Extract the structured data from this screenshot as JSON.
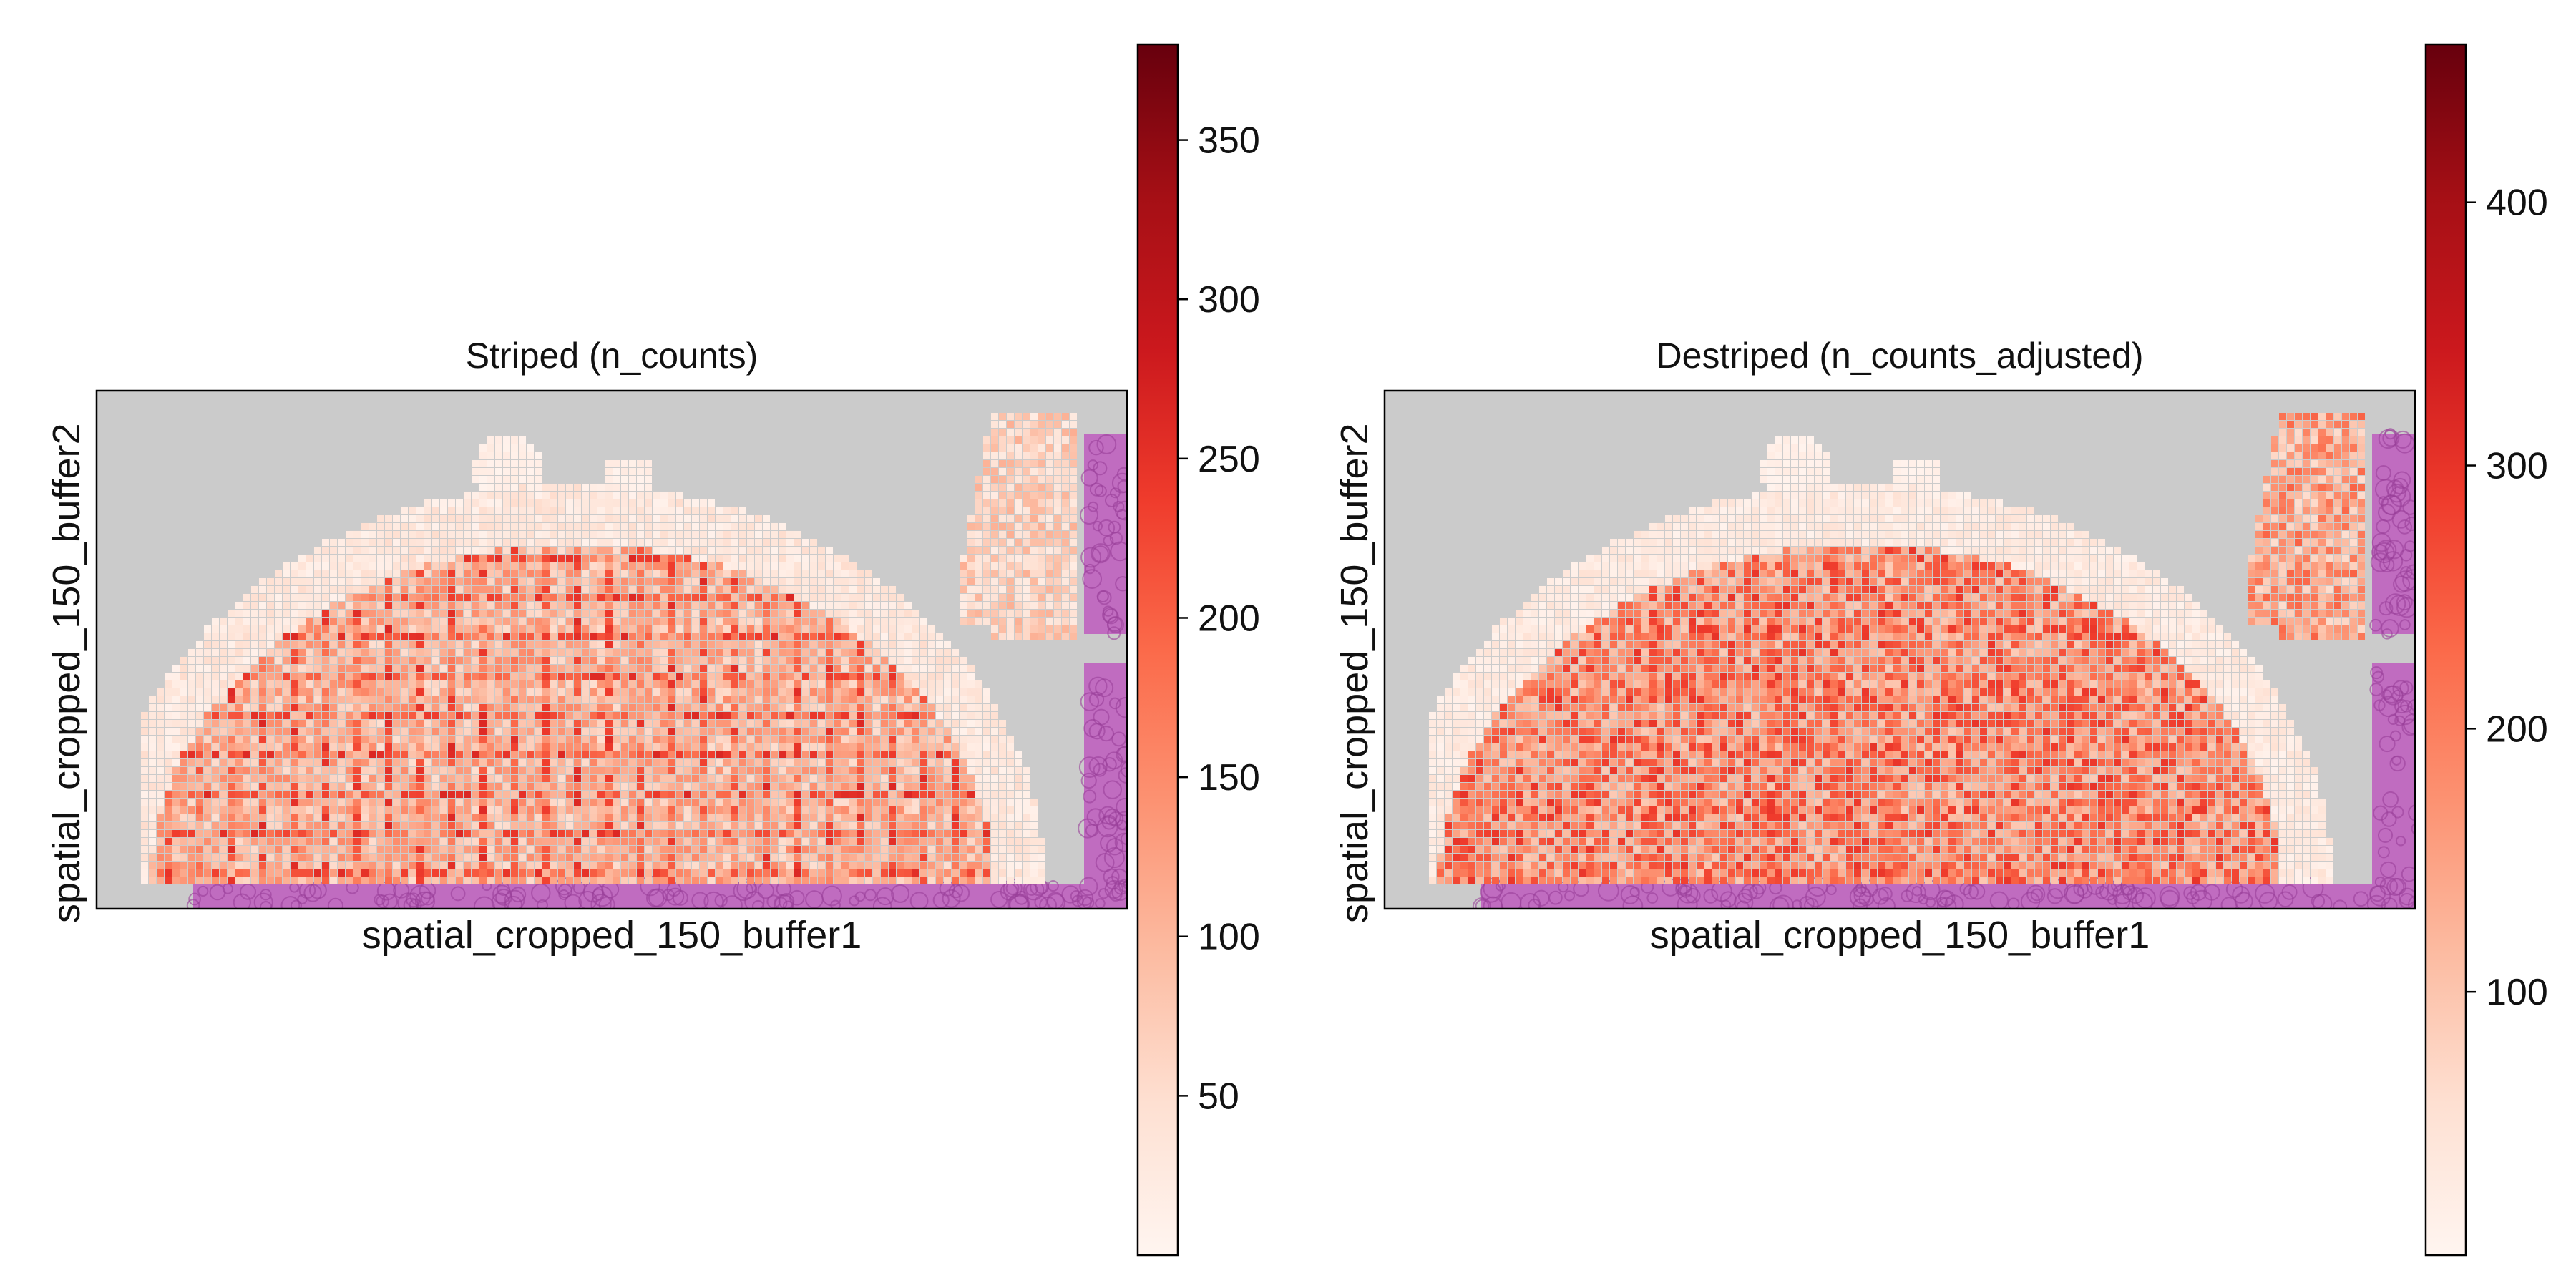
{
  "panels": [
    {
      "title": "Striped (n_counts)",
      "xlabel": "spatial_cropped_150_buffer1",
      "ylabel": "spatial_cropped_150_buffer2",
      "colorbar": {
        "cmap": "Reds",
        "ticks": [
          50,
          100,
          150,
          200,
          250,
          300,
          350
        ],
        "vmin": 0,
        "vmax": 380
      }
    },
    {
      "title": "Destriped (n_counts_adjusted)",
      "xlabel": "spatial_cropped_150_buffer1",
      "ylabel": "spatial_cropped_150_buffer2",
      "colorbar": {
        "cmap": "Reds",
        "ticks": [
          100,
          200,
          300,
          400
        ],
        "vmin": 0,
        "vmax": 460
      }
    }
  ],
  "chart_data": [
    {
      "type": "heatmap",
      "title": "Striped (n_counts)",
      "xlabel": "spatial_cropped_150_buffer1",
      "ylabel": "spatial_cropped_150_buffer2",
      "colorscale": "Reds",
      "color_range": [
        0,
        380
      ],
      "colorbar_ticks": [
        50,
        100,
        150,
        200,
        250,
        300,
        350
      ],
      "typical_tissue_value": 120,
      "background": "histology image (H&E)",
      "grid": false,
      "legend": "colorbar-right"
    },
    {
      "type": "heatmap",
      "title": "Destriped (n_counts_adjusted)",
      "xlabel": "spatial_cropped_150_buffer1",
      "ylabel": "spatial_cropped_150_buffer2",
      "colorscale": "Reds",
      "color_range": [
        0,
        460
      ],
      "colorbar_ticks": [
        100,
        200,
        300,
        400
      ],
      "typical_tissue_value": 200,
      "background": "histology image (H&E)",
      "grid": false,
      "legend": "colorbar-right"
    }
  ],
  "colors": {
    "background_gray": "#cbcbcb",
    "tissue_purple": "#c06cc0",
    "reds_low": "#fff5f0",
    "reds_mid": "#fb6a4a",
    "reds_high": "#67000d"
  }
}
